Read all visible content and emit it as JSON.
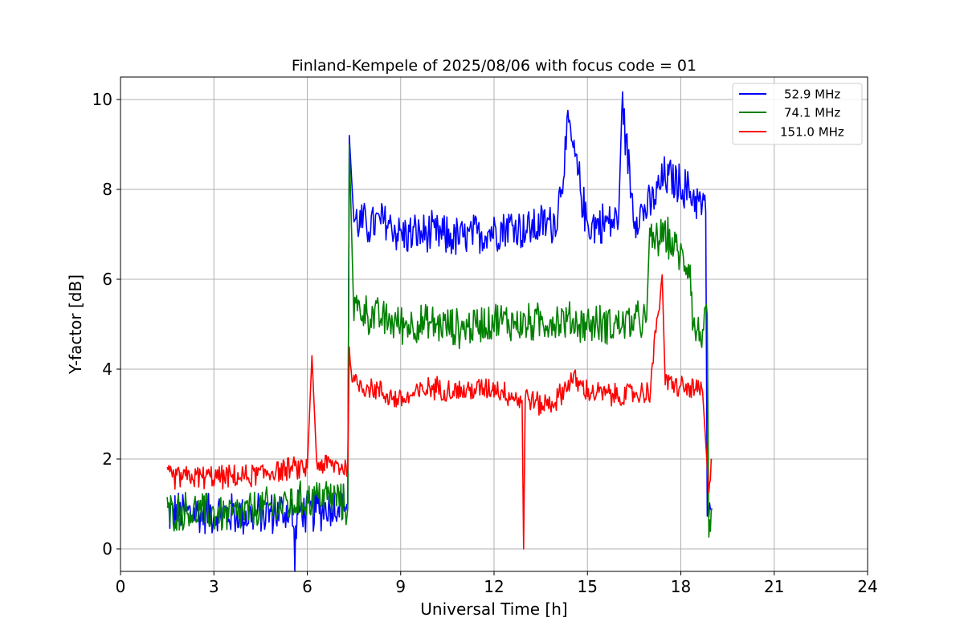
{
  "chart_data": {
    "type": "line",
    "title": "Finland-Kempele of 2025/08/06 with focus code = 01",
    "xlabel": "Universal Time [h]",
    "ylabel": "Y-factor [dB]",
    "xlim": [
      0,
      24
    ],
    "ylim": [
      -0.5,
      10.5
    ],
    "xticks": [
      0,
      3,
      6,
      9,
      12,
      15,
      18,
      21,
      24
    ],
    "yticks": [
      0,
      2,
      4,
      6,
      8,
      10
    ],
    "grid": true,
    "legend_position": "top-right",
    "series": [
      {
        "name": "52.9 MHz",
        "color": "#0000ff",
        "x": [
          1.5,
          2.0,
          3.0,
          4.0,
          5.0,
          5.5,
          5.6,
          5.7,
          6.0,
          6.5,
          7.0,
          7.3,
          7.35,
          7.5,
          8.0,
          8.5,
          9.0,
          10.0,
          11.0,
          12.0,
          12.5,
          13.0,
          14.0,
          14.4,
          15.0,
          16.0,
          16.1,
          16.5,
          17.0,
          17.5,
          18.0,
          18.5,
          18.8,
          18.85,
          18.9,
          19.0
        ],
        "y": [
          0.8,
          0.8,
          0.8,
          0.75,
          0.8,
          0.85,
          0.0,
          0.85,
          0.8,
          0.9,
          1.0,
          1.0,
          9.2,
          7.3,
          7.2,
          7.3,
          7.0,
          7.0,
          6.9,
          7.1,
          7.2,
          7.1,
          7.3,
          9.4,
          7.2,
          7.3,
          10.0,
          7.4,
          7.6,
          8.3,
          8.1,
          7.8,
          7.5,
          1.0,
          0.9,
          0.9
        ],
        "band": 0.55
      },
      {
        "name": "74.1 MHz",
        "color": "#008000",
        "x": [
          1.5,
          2.0,
          3.0,
          3.5,
          4.0,
          4.5,
          5.0,
          5.5,
          6.0,
          6.5,
          7.0,
          7.3,
          7.35,
          7.5,
          8.0,
          9.0,
          10.0,
          11.0,
          12.0,
          13.0,
          14.0,
          15.0,
          16.0,
          16.9,
          17.0,
          17.5,
          18.0,
          18.3,
          18.4,
          18.7,
          18.85,
          18.9,
          19.0
        ],
        "y": [
          0.8,
          0.85,
          0.8,
          0.75,
          0.8,
          0.9,
          0.95,
          1.0,
          1.1,
          1.2,
          1.1,
          0.9,
          9.0,
          5.4,
          5.2,
          5.0,
          5.0,
          4.9,
          5.1,
          5.0,
          5.1,
          5.0,
          5.0,
          5.1,
          6.8,
          7.0,
          6.5,
          6.3,
          4.9,
          4.8,
          5.2,
          0.2,
          0.9
        ],
        "band": 0.5
      },
      {
        "name": "151.0 MHz",
        "color": "#ff0000",
        "x": [
          1.5,
          2.0,
          3.0,
          4.0,
          5.0,
          6.0,
          6.15,
          6.3,
          7.0,
          7.3,
          7.35,
          7.5,
          8.0,
          9.0,
          10.0,
          11.0,
          12.0,
          12.9,
          12.95,
          13.0,
          13.5,
          14.0,
          14.5,
          15.0,
          16.0,
          17.0,
          17.4,
          17.5,
          18.0,
          18.7,
          18.9,
          19.0
        ],
        "y": [
          1.6,
          1.6,
          1.6,
          1.6,
          1.75,
          1.8,
          4.3,
          1.9,
          1.85,
          1.8,
          4.3,
          3.7,
          3.6,
          3.3,
          3.6,
          3.5,
          3.6,
          3.3,
          0.0,
          3.4,
          3.2,
          3.3,
          3.8,
          3.5,
          3.4,
          3.5,
          6.1,
          3.7,
          3.6,
          3.5,
          1.2,
          2.0
        ],
        "band": 0.3
      }
    ]
  }
}
